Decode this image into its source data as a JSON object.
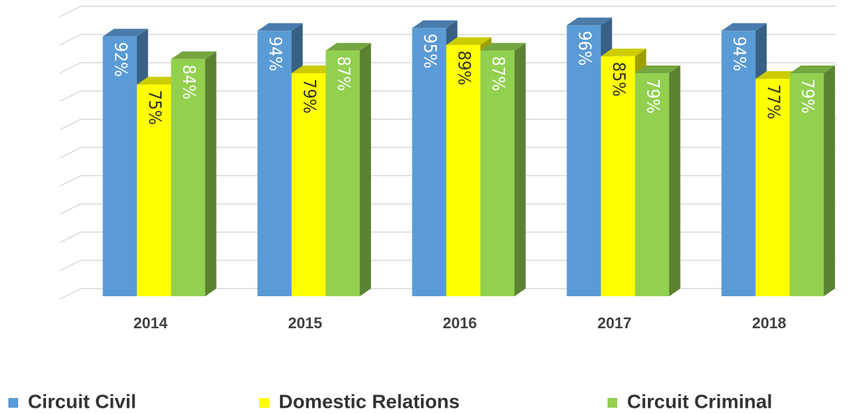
{
  "chart_data": {
    "type": "bar3d",
    "categories": [
      "2014",
      "2015",
      "2016",
      "2017",
      "2018"
    ],
    "series": [
      {
        "name": "Circuit Civil",
        "color": "#5b9bd5",
        "values": [
          92,
          94,
          95,
          96,
          94
        ],
        "value_labels": [
          "92%",
          "94%",
          "95%",
          "96%",
          "94%"
        ]
      },
      {
        "name": "Domestic Relations",
        "color": "#ffff00",
        "values": [
          75,
          79,
          89,
          85,
          77
        ],
        "value_labels": [
          "75%",
          "79%",
          "89%",
          "85%",
          "77%"
        ]
      },
      {
        "name": "Circuit Criminal",
        "color": "#92d050",
        "values": [
          84,
          87,
          87,
          79,
          79
        ],
        "value_labels": [
          "84%",
          "87%",
          "87%",
          "79%",
          "79%"
        ]
      }
    ],
    "ylim": [
      0,
      100
    ],
    "yticks": [
      0,
      10,
      20,
      30,
      40,
      50,
      60,
      70,
      80,
      90,
      100
    ],
    "grid": true,
    "legend": "bottom"
  }
}
